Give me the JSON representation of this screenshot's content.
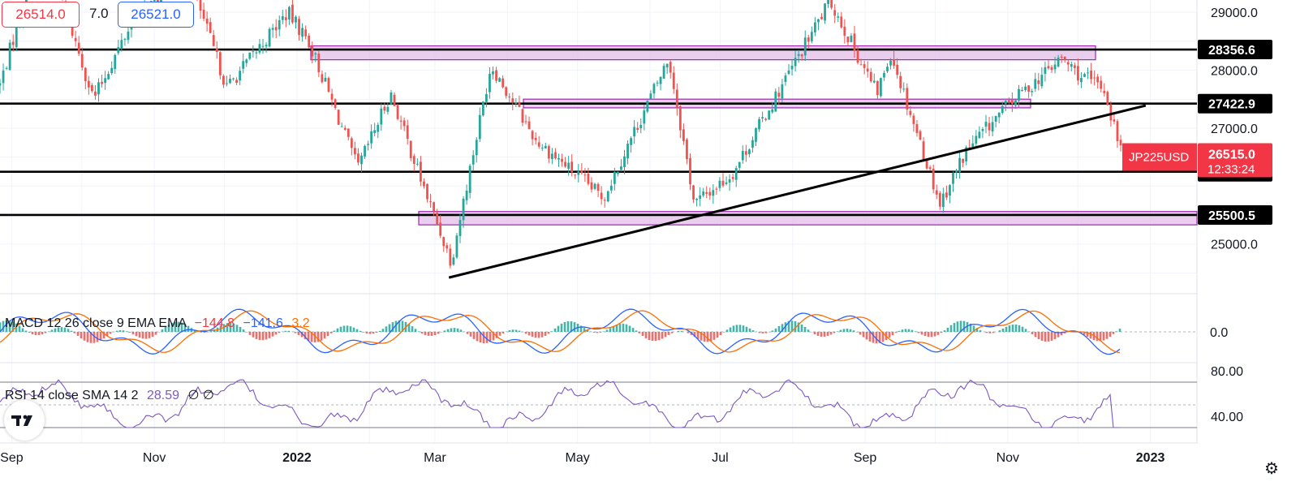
{
  "header": {
    "bid": "26514.0",
    "spread": "7.0",
    "ask": "26521.0"
  },
  "macd": {
    "label": "MACD 12 26 close 9 EMA EMA",
    "v1": "−144.8",
    "v2": "−141.6",
    "v3": "3.2",
    "zero_tick": "0.0"
  },
  "rsi": {
    "label": "RSI 14 close SMA 14 2",
    "value": "28.59",
    "extra": "∅ ∅",
    "ticks": [
      "80.00",
      "40.00"
    ]
  },
  "symbol_tag": {
    "symbol": "JP225USD",
    "price": "26515.0",
    "countdown": "12:33:24"
  },
  "price_ticks": [
    {
      "label": "29000.0",
      "value": 29000
    },
    {
      "label": "28000.0",
      "value": 28000
    },
    {
      "label": "27000.0",
      "value": 27000
    },
    {
      "label": "25000.0",
      "value": 25000
    }
  ],
  "level_labels": [
    {
      "label": "28356.6",
      "value": 28356.6
    },
    {
      "label": "27422.9",
      "value": 27422.9
    },
    {
      "label": "26246.0",
      "value": 26246.0
    },
    {
      "label": "25500.5",
      "value": 25500.5
    }
  ],
  "x_ticks": [
    {
      "label": "Sep",
      "bold": false
    },
    {
      "label": "Nov",
      "bold": false
    },
    {
      "label": "2022",
      "bold": true
    },
    {
      "label": "Mar",
      "bold": false
    },
    {
      "label": "May",
      "bold": false
    },
    {
      "label": "Jul",
      "bold": false
    },
    {
      "label": "Sep",
      "bold": false
    },
    {
      "label": "Nov",
      "bold": false
    },
    {
      "label": "2023",
      "bold": true
    }
  ],
  "colors": {
    "up": "#26a69a",
    "down": "#ef5350",
    "zone_fill": "#e1bee7",
    "zone_border": "#9c27b0",
    "macd_line": "#2962ff",
    "signal_line": "#ff6d00",
    "rsi_line": "#7e57c2",
    "last_price": "#f23645"
  },
  "chart_data": {
    "type": "candlestick",
    "y_range": [
      24000,
      29600
    ],
    "horizontal_levels": [
      28356.6,
      27422.9,
      26246.0,
      25500.5
    ],
    "zones": [
      {
        "low": 28180,
        "high": 28420
      },
      {
        "low": 27350,
        "high": 27500
      },
      {
        "low": 25330,
        "high": 25560
      }
    ],
    "trendline": {
      "from": {
        "date": "2022-03-07",
        "price": 24420
      },
      "to": {
        "date": "2022-12-30",
        "price": 27390
      }
    },
    "last_price": 26515.0,
    "anchors": [
      {
        "date": "2021-08-27",
        "close": 27750
      },
      {
        "date": "2021-09-14",
        "close": 30300
      },
      {
        "date": "2021-10-06",
        "close": 27500
      },
      {
        "date": "2021-10-22",
        "close": 28800
      },
      {
        "date": "2021-11-15",
        "close": 29700
      },
      {
        "date": "2021-12-02",
        "close": 27700
      },
      {
        "date": "2021-12-28",
        "close": 29000
      },
      {
        "date": "2022-01-06",
        "close": 28500
      },
      {
        "date": "2022-01-27",
        "close": 26300
      },
      {
        "date": "2022-02-10",
        "close": 27600
      },
      {
        "date": "2022-02-24",
        "close": 26000
      },
      {
        "date": "2022-03-08",
        "close": 24700
      },
      {
        "date": "2022-03-25",
        "close": 28100
      },
      {
        "date": "2022-04-13",
        "close": 26800
      },
      {
        "date": "2022-05-12",
        "close": 25800
      },
      {
        "date": "2022-06-09",
        "close": 28200
      },
      {
        "date": "2022-06-20",
        "close": 25700
      },
      {
        "date": "2022-07-06",
        "close": 26200
      },
      {
        "date": "2022-08-17",
        "close": 29200
      },
      {
        "date": "2022-09-06",
        "close": 27600
      },
      {
        "date": "2022-09-12",
        "close": 28300
      },
      {
        "date": "2022-10-03",
        "close": 25700
      },
      {
        "date": "2022-10-14",
        "close": 26600
      },
      {
        "date": "2022-11-01",
        "close": 27400
      },
      {
        "date": "2022-11-24",
        "close": 28200
      },
      {
        "date": "2022-12-02",
        "close": 27900
      },
      {
        "date": "2022-12-12",
        "close": 27700
      },
      {
        "date": "2022-12-20",
        "close": 26515
      }
    ]
  }
}
